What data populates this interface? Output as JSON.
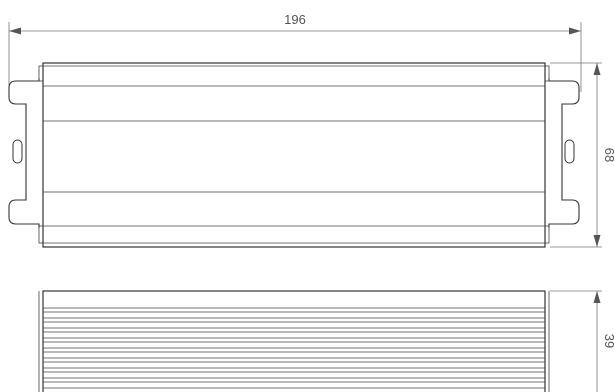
{
  "drawing": {
    "top_view": {
      "width_label": "196",
      "height_label": "68"
    },
    "side_view": {
      "height_label": "39"
    }
  }
}
